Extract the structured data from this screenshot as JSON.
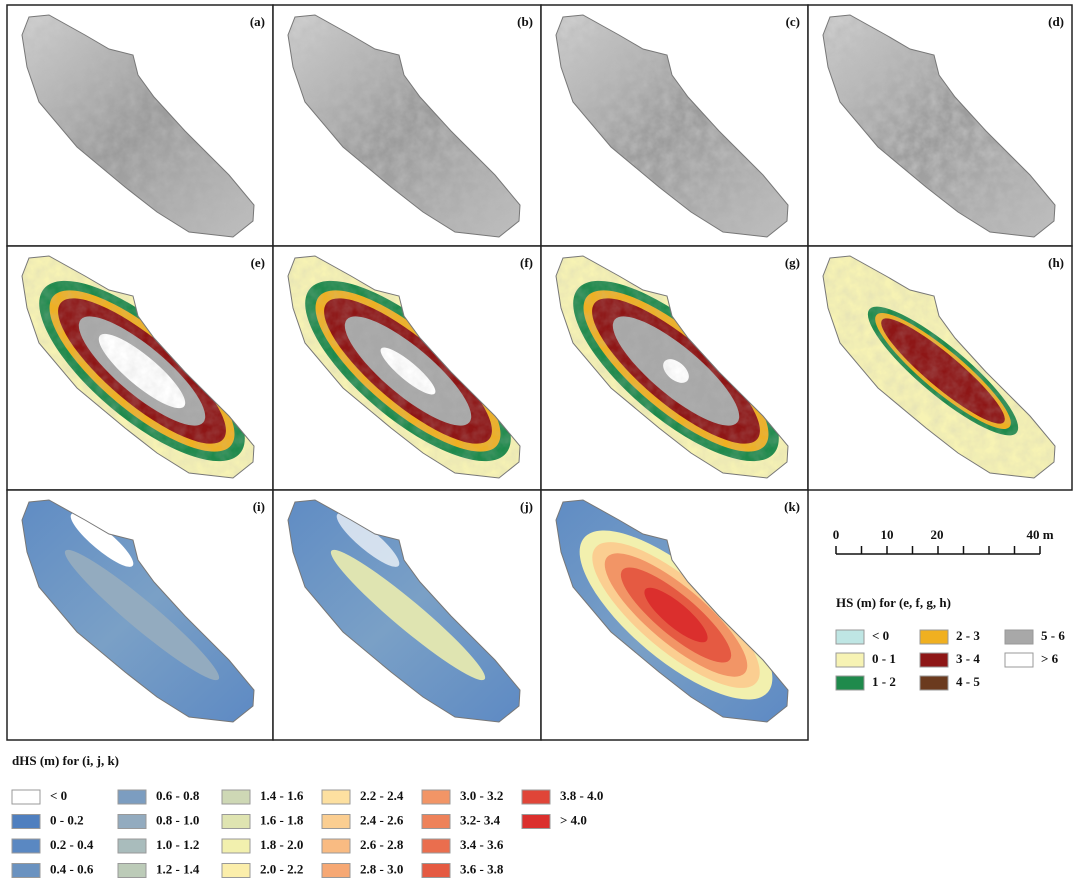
{
  "panels": [
    {
      "label": "(a)"
    },
    {
      "label": "(b)"
    },
    {
      "label": "(c)"
    },
    {
      "label": "(d)"
    },
    {
      "label": "(e)"
    },
    {
      "label": "(f)"
    },
    {
      "label": "(g)"
    },
    {
      "label": "(h)"
    },
    {
      "label": "(i)"
    },
    {
      "label": "(j)"
    },
    {
      "label": "(k)"
    }
  ],
  "scale_bar": {
    "labels": [
      "0",
      "10",
      "20",
      "40 m"
    ]
  },
  "hs_legend": {
    "title": "HS (m)  for (e, f, g, h)",
    "items": [
      {
        "label": "< 0",
        "color": "#bfe6e4"
      },
      {
        "label": "0 - 1",
        "color": "#f7f3b4"
      },
      {
        "label": "1 - 2",
        "color": "#1f8a4c"
      },
      {
        "label": "2 - 3",
        "color": "#f0b020"
      },
      {
        "label": "3 - 4",
        "color": "#8e1616"
      },
      {
        "label": "4 - 5",
        "color": "#6b3a1e"
      },
      {
        "label": "5 - 6",
        "color": "#a8a8a8"
      },
      {
        "label": "> 6",
        "color": "#ffffff"
      }
    ]
  },
  "dhs_legend": {
    "title": "dHS (m) for (i, j, k)",
    "items": [
      {
        "label": "< 0",
        "color": "#ffffff"
      },
      {
        "label": "0 - 0.2",
        "color": "#4f7fbf"
      },
      {
        "label": "0.2 - 0.4",
        "color": "#5a88c2"
      },
      {
        "label": "0.4 - 0.6",
        "color": "#6a92c0"
      },
      {
        "label": "0.6 - 0.8",
        "color": "#7c9dc0"
      },
      {
        "label": "0.8 - 1.0",
        "color": "#93abbf"
      },
      {
        "label": "1.0 - 1.2",
        "color": "#a9bcbc"
      },
      {
        "label": "1.2 - 1.4",
        "color": "#bccbb8"
      },
      {
        "label": "1.4 - 1.6",
        "color": "#ced8b5"
      },
      {
        "label": "1.6 - 1.8",
        "color": "#dfe4b1"
      },
      {
        "label": "1.8 - 2.0",
        "color": "#f2f0ae"
      },
      {
        "label": "2.0 - 2.2",
        "color": "#fbeeab"
      },
      {
        "label": "2.2 - 2.4",
        "color": "#fde0a0"
      },
      {
        "label": "2.4 - 2.6",
        "color": "#fbce91"
      },
      {
        "label": "2.6 - 2.8",
        "color": "#f9bb82"
      },
      {
        "label": "2.8 - 3.0",
        "color": "#f6a874"
      },
      {
        "label": "3.0 - 3.2",
        "color": "#f29566"
      },
      {
        "label": "3.2- 3.4",
        "color": "#ee825a"
      },
      {
        "label": "3.4 - 3.6",
        "color": "#ea6e4e"
      },
      {
        "label": "3.6 - 3.8",
        "color": "#e55a42"
      },
      {
        "label": "3.8 - 4.0",
        "color": "#e04538"
      },
      {
        "label": "> 4.0",
        "color": "#db2f2d"
      }
    ]
  }
}
